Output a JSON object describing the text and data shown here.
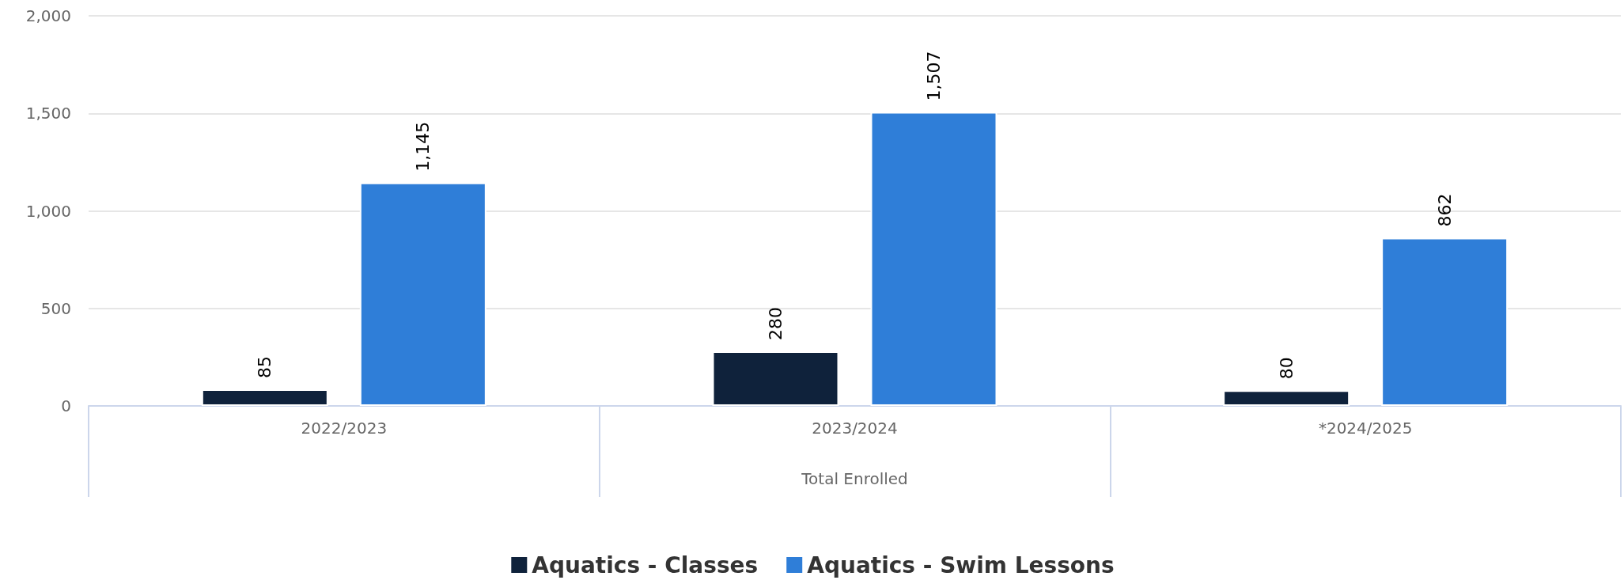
{
  "chart_data": {
    "type": "bar",
    "xlabel": "Total Enrolled",
    "categories": [
      "2022/2023",
      "2023/2024",
      "*2024/2025"
    ],
    "series": [
      {
        "name": "Aquatics - Classes",
        "color": "#0f223b",
        "values": [
          85,
          280,
          80
        ],
        "value_labels": [
          "85",
          "280",
          "80"
        ]
      },
      {
        "name": "Aquatics - Swim Lessons",
        "color": "#2f7ed8",
        "values": [
          1145,
          1507,
          862
        ],
        "value_labels": [
          "1,145",
          "1,507",
          "862"
        ]
      }
    ],
    "ylim": [
      0,
      2000
    ],
    "yticks": [
      0,
      500,
      {
        "value": 1000,
        "label": "1,000"
      },
      {
        "value": 1500,
        "label": "1,500"
      },
      {
        "value": 2000,
        "label": "2,000"
      }
    ],
    "grid": "y",
    "legend": "bottom"
  }
}
